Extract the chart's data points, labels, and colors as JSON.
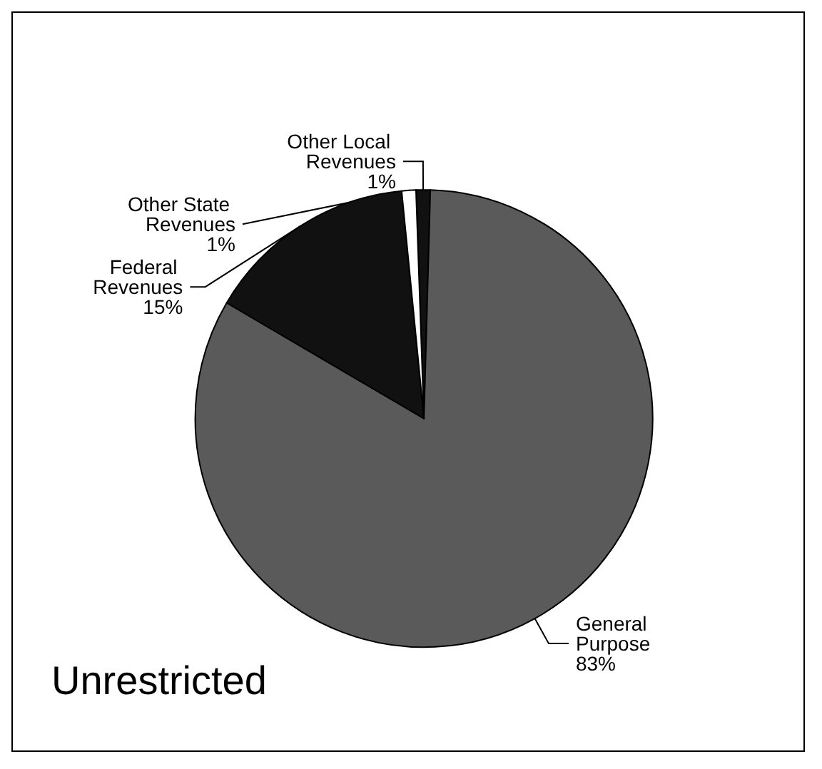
{
  "chart_data": {
    "type": "pie",
    "title": "Unrestricted",
    "categories": [
      "Other Local Revenues",
      "General Purpose",
      "Federal Revenues",
      "Other State Revenues"
    ],
    "values": [
      1,
      83,
      15,
      1
    ],
    "colors": [
      "#111111",
      "#5a5a5a",
      "#111111",
      "#ffffff"
    ],
    "value_labels": [
      "1%",
      "83%",
      "15%",
      "1%"
    ],
    "legend": false
  }
}
